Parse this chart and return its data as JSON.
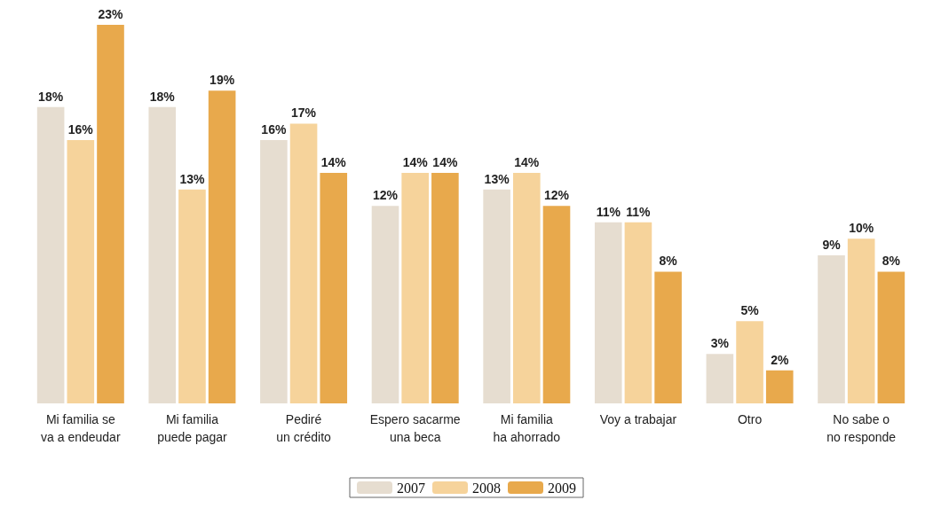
{
  "chart_data": {
    "type": "bar",
    "categories": [
      "Mi familia se\nva a endeudar",
      "Mi familia\npuede pagar",
      "Pediré\nun crédito",
      "Espero sacarme\nuna beca",
      "Mi familia\nha ahorrado",
      "Voy a trabajar",
      "Otro",
      "No sabe o\nno responde"
    ],
    "series": [
      {
        "name": "2007",
        "color": "#e6ddd0",
        "values": [
          18,
          18,
          16,
          12,
          13,
          11,
          3,
          9
        ],
        "value_labels": [
          "18%",
          "18%",
          "16%",
          "12%",
          "13%",
          "11%",
          "3%",
          "9%"
        ]
      },
      {
        "name": "2008",
        "color": "#f6d39b",
        "values": [
          16,
          13,
          17,
          14,
          14,
          11,
          5,
          10
        ],
        "value_labels": [
          "16%",
          "13%",
          "17%",
          "14%",
          "14%",
          "11%",
          "5%",
          "10%"
        ]
      },
      {
        "name": "2009",
        "color": "#e8a94c",
        "values": [
          23,
          19,
          14,
          14,
          12,
          8,
          2,
          8
        ],
        "value_labels": [
          "23%",
          "19%",
          "14%",
          "14%",
          "12%",
          "8%",
          "2%",
          "8%"
        ]
      }
    ],
    "tick_labels": "x",
    "legend": "bottom"
  }
}
